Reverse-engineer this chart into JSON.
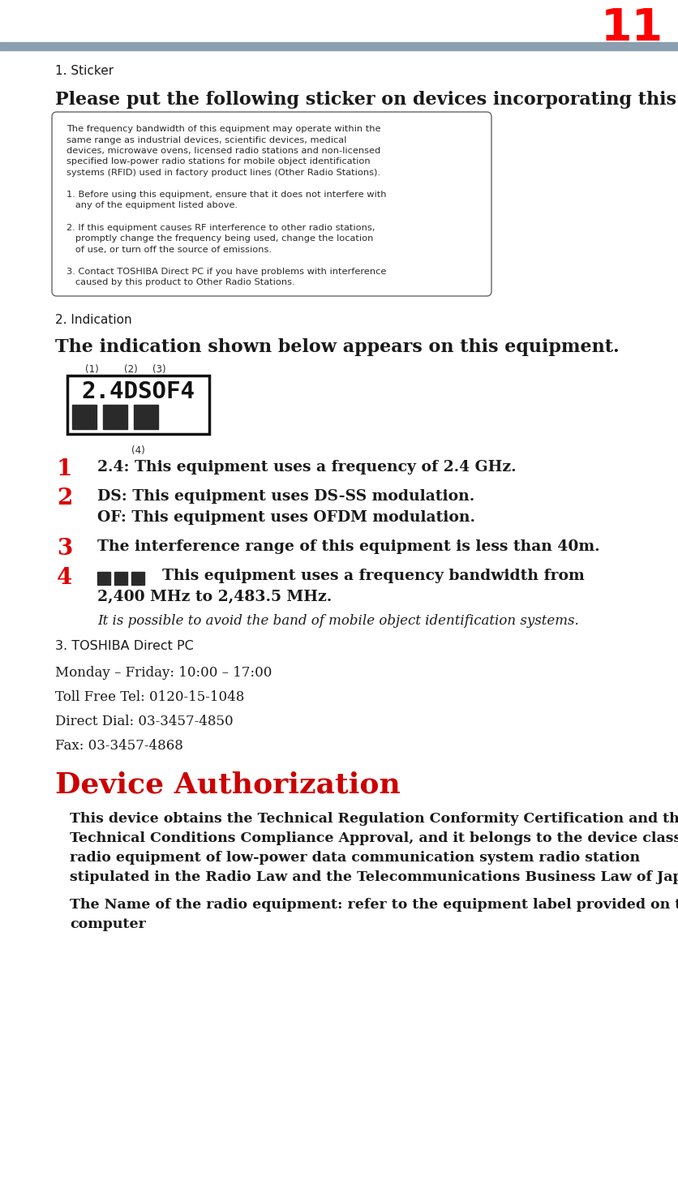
{
  "bg_color": "#ffffff",
  "header_bar_color": "#8a9faf",
  "header_number": "11",
  "header_number_color": "#ff0000",
  "title1": "1. Sticker",
  "subtitle1": "Please put the following sticker on devices incorporating this product.",
  "box_line1": "The frequency bandwidth of this equipment may operate within the",
  "box_line2": "same range as industrial devices, scientific devices, medical",
  "box_line3": "devices, microwave ovens, licensed radio stations and non-licensed",
  "box_line4": "specified low-power radio stations for mobile object identification",
  "box_line5": "systems (RFID) used in factory product lines (Other Radio Stations).",
  "box_line6": "1. Before using this equipment, ensure that it does not interfere with",
  "box_line7": "   any of the equipment listed above.",
  "box_line8": "2. If this equipment causes RF interference to other radio stations,",
  "box_line9": "   promptly change the frequency being used, change the location",
  "box_line10": "   of use, or turn off the source of emissions.",
  "box_line11": "3. Contact TOSHIBA Direct PC if you have problems with interference",
  "box_line12": "   caused by this product to Other Radio Stations.",
  "title2": "2. Indication",
  "subtitle2": "The indication shown below appears on this equipment.",
  "label1": "(1)",
  "label2": "(2)",
  "label3": "(3)",
  "sticker_text": "2.4DSOF4",
  "sticker_bottom_label": "(4)",
  "item1_num": "1",
  "item1_text": "2.4: This equipment uses a frequency of 2.4 GHz.",
  "item2_num": "2",
  "item2_text1": "DS: This equipment uses DS-SS modulation.",
  "item2_text2": "OF: This equipment uses OFDM modulation.",
  "item3_num": "3",
  "item3_text": "The interference range of this equipment is less than 40m.",
  "item4_num": "4",
  "item4_text1": "  This equipment uses a frequency bandwidth from",
  "item4_text2": "2,400 MHz to 2,483.5 MHz.",
  "item4_sub": "It is possible to avoid the band of mobile object identification systems.",
  "title3": "3. TOSHIBA Direct PC",
  "contact1": "Monday – Friday: 10:00 – 17:00",
  "contact2": "Toll Free Tel: 0120-15-1048",
  "contact3": "Direct Dial: 03-3457-4850",
  "contact4": "Fax: 03-3457-4868",
  "section_title": "Device Authorization",
  "section_title_color": "#cc0000",
  "para1_line1": "This device obtains the Technical Regulation Conformity Certification and the",
  "para1_line2": "Technical Conditions Compliance Approval, and it belongs to the device class of",
  "para1_line3": "radio equipment of low-power data communication system radio station",
  "para1_line4": "stipulated in the Radio Law and the Telecommunications Business Law of Japan.",
  "para2_line1": "The Name of the radio equipment: refer to the equipment label provided on the",
  "para2_line2": "computer",
  "red_color": "#dd0000",
  "dark_color": "#2a2a2a",
  "black_color": "#1a1a1a",
  "box_dark": "#333333"
}
